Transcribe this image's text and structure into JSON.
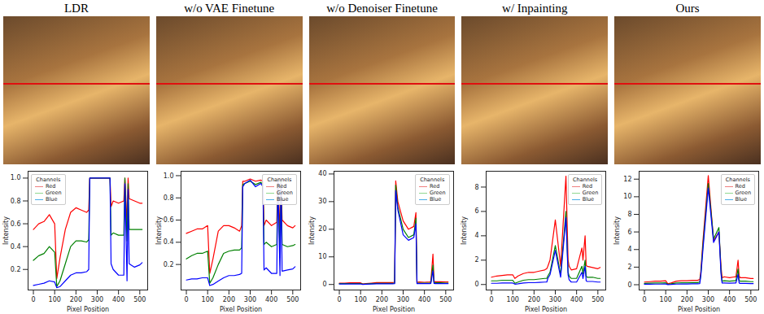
{
  "chart_data": [
    {
      "type": "line",
      "title": "LDR",
      "x_label": "Pixel Position",
      "y_label": "Intensity",
      "legend": "top left",
      "legend_title": "Channels",
      "xlim": [
        -25,
        537
      ],
      "xticks": [
        0,
        100,
        200,
        300,
        400,
        500
      ],
      "ylim": [
        0.02,
        1.06
      ],
      "yticks": [
        {
          "value": 0.2,
          "label": "0.2"
        },
        {
          "value": 0.4,
          "label": "0.4"
        },
        {
          "value": 0.6,
          "label": "0.6"
        },
        {
          "value": 0.8,
          "label": "0.8"
        },
        {
          "value": 1,
          "label": "1.0"
        }
      ],
      "x": [
        0,
        25,
        50,
        75,
        100,
        110,
        125,
        150,
        175,
        200,
        225,
        250,
        260,
        265,
        275,
        300,
        325,
        350,
        360,
        365,
        375,
        400,
        425,
        430,
        440,
        445,
        450,
        475,
        500,
        511
      ],
      "series": [
        {
          "name": "Red",
          "color": "#f08080",
          "values": [
            0.55,
            0.6,
            0.62,
            0.68,
            0.6,
            0.12,
            0.3,
            0.55,
            0.7,
            0.74,
            0.72,
            0.7,
            0.72,
            1,
            1,
            1,
            1,
            1,
            1,
            0.75,
            0.8,
            0.78,
            0.8,
            1,
            0.6,
            1,
            0.82,
            0.8,
            0.78,
            0.78
          ]
        },
        {
          "name": "Green",
          "color": "#90d890",
          "values": [
            0.28,
            0.32,
            0.34,
            0.4,
            0.35,
            0.05,
            0.1,
            0.25,
            0.4,
            0.45,
            0.45,
            0.44,
            0.46,
            1,
            1,
            1,
            1,
            1,
            1,
            0.5,
            0.52,
            0.5,
            0.5,
            1,
            0.45,
            0.95,
            0.55,
            0.55,
            0.55,
            0.55
          ]
        },
        {
          "name": "Blue",
          "color": "#4aaee8",
          "values": [
            0.06,
            0.07,
            0.08,
            0.1,
            0.09,
            0.04,
            0.05,
            0.1,
            0.15,
            0.17,
            0.17,
            0.18,
            0.2,
            1,
            1,
            1,
            1,
            1,
            1,
            0.25,
            0.2,
            0.15,
            0.15,
            0.95,
            0.1,
            0.9,
            0.25,
            0.22,
            0.24,
            0.26
          ]
        }
      ]
    },
    {
      "type": "line",
      "title": "w/o VAE Finetune",
      "x_label": "Pixel Position",
      "y_label": "Intensity",
      "legend": "top right",
      "legend_title": "Channels",
      "xlim": [
        -25,
        537
      ],
      "xticks": [
        0,
        100,
        200,
        300,
        400,
        500
      ],
      "ylim": [
        -0.03,
        1.04
      ],
      "yticks": [
        {
          "value": 0.2,
          "label": "0.2"
        },
        {
          "value": 0.4,
          "label": "0.4"
        },
        {
          "value": 0.6,
          "label": "0.6"
        },
        {
          "value": 0.8,
          "label": "0.8"
        },
        {
          "value": 1,
          "label": "1.0"
        }
      ],
      "x": [
        0,
        25,
        50,
        75,
        100,
        110,
        125,
        150,
        175,
        200,
        225,
        250,
        260,
        265,
        275,
        300,
        325,
        350,
        360,
        365,
        375,
        400,
        425,
        430,
        440,
        445,
        450,
        475,
        500,
        511
      ],
      "series": [
        {
          "name": "Red",
          "color": "#f08080",
          "values": [
            0.48,
            0.5,
            0.52,
            0.52,
            0.55,
            0.12,
            0.25,
            0.5,
            0.55,
            0.55,
            0.53,
            0.5,
            0.55,
            0.95,
            0.95,
            0.97,
            0.95,
            0.96,
            0.95,
            0.55,
            0.6,
            0.55,
            0.58,
            0.98,
            0.5,
            0.98,
            0.6,
            0.55,
            0.53,
            0.55
          ]
        },
        {
          "name": "Green",
          "color": "#90d890",
          "values": [
            0.25,
            0.28,
            0.3,
            0.3,
            0.32,
            0.03,
            0.08,
            0.2,
            0.3,
            0.32,
            0.33,
            0.33,
            0.35,
            0.92,
            0.93,
            0.95,
            0.92,
            0.94,
            0.92,
            0.38,
            0.4,
            0.36,
            0.38,
            0.95,
            0.3,
            0.95,
            0.38,
            0.36,
            0.37,
            0.38
          ]
        },
        {
          "name": "Blue",
          "color": "#4aaee8",
          "values": [
            0.06,
            0.07,
            0.07,
            0.08,
            0.08,
            0.01,
            0.02,
            0.05,
            0.08,
            0.1,
            0.1,
            0.11,
            0.12,
            0.9,
            0.93,
            0.96,
            0.9,
            0.93,
            0.9,
            0.15,
            0.17,
            0.12,
            0.12,
            0.95,
            0.1,
            0.93,
            0.14,
            0.15,
            0.16,
            0.18
          ]
        }
      ]
    },
    {
      "type": "line",
      "title": "w/o Denoiser Finetune",
      "x_label": "Pixel Position",
      "y_label": "Intensity",
      "legend": "top right",
      "legend_title": "Channels",
      "xlim": [
        -25,
        537
      ],
      "xticks": [
        0,
        100,
        200,
        300,
        400,
        500
      ],
      "ylim": [
        -2,
        41
      ],
      "yticks": [
        0,
        10,
        20,
        30,
        40
      ],
      "x": [
        0,
        25,
        50,
        75,
        100,
        110,
        125,
        150,
        175,
        200,
        225,
        250,
        260,
        265,
        275,
        300,
        325,
        350,
        360,
        365,
        375,
        400,
        425,
        430,
        440,
        445,
        450,
        475,
        500,
        511
      ],
      "series": [
        {
          "name": "Red",
          "color": "#f08080",
          "values": [
            0.5,
            0.5,
            0.6,
            0.6,
            0.6,
            0.2,
            0.3,
            0.5,
            0.7,
            0.7,
            0.7,
            0.7,
            0.8,
            37.5,
            30,
            23,
            20,
            21,
            26,
            0.8,
            0.9,
            0.8,
            0.9,
            1,
            11,
            1.2,
            1,
            1,
            0.9,
            0.9
          ]
        },
        {
          "name": "Green",
          "color": "#90d890",
          "values": [
            0.3,
            0.3,
            0.35,
            0.35,
            0.35,
            0.1,
            0.2,
            0.3,
            0.4,
            0.4,
            0.4,
            0.4,
            0.5,
            36,
            28,
            20,
            17,
            18,
            24,
            0.5,
            0.5,
            0.5,
            0.5,
            0.6,
            7,
            0.7,
            0.6,
            0.6,
            0.5,
            0.5
          ]
        },
        {
          "name": "Blue",
          "color": "#4aaee8",
          "values": [
            0.2,
            0.2,
            0.2,
            0.2,
            0.2,
            0.05,
            0.1,
            0.2,
            0.25,
            0.25,
            0.25,
            0.25,
            0.3,
            34,
            27,
            18,
            16,
            17,
            22,
            0.3,
            0.3,
            0.3,
            0.3,
            0.4,
            5,
            0.4,
            0.3,
            0.3,
            0.3,
            0.3
          ]
        }
      ]
    },
    {
      "type": "line",
      "title": "w/ Inpainting",
      "x_label": "Pixel Position",
      "y_label": "Intensity",
      "legend": "top right",
      "legend_title": "Channels",
      "xlim": [
        -25,
        537
      ],
      "xticks": [
        0,
        100,
        200,
        300,
        400,
        500
      ],
      "ylim": [
        -0.45,
        9.3
      ],
      "yticks": [
        0,
        2,
        4,
        6,
        8
      ],
      "x": [
        0,
        25,
        50,
        75,
        100,
        110,
        125,
        150,
        175,
        200,
        225,
        250,
        260,
        265,
        275,
        300,
        325,
        350,
        360,
        365,
        375,
        400,
        425,
        430,
        440,
        445,
        450,
        475,
        500,
        511
      ],
      "series": [
        {
          "name": "Red",
          "color": "#f08080",
          "values": [
            0.6,
            0.7,
            0.75,
            0.8,
            0.8,
            0.5,
            0.7,
            0.9,
            1.0,
            1.0,
            1.1,
            1.2,
            1.3,
            1.5,
            2.0,
            5.3,
            1.5,
            8.9,
            2.0,
            1.5,
            1.2,
            1.3,
            3.0,
            2.0,
            4.0,
            1.6,
            1.5,
            1.4,
            1.3,
            1.4
          ]
        },
        {
          "name": "Green",
          "color": "#90d890",
          "values": [
            0.3,
            0.3,
            0.35,
            0.35,
            0.35,
            0.1,
            0.2,
            0.35,
            0.4,
            0.4,
            0.45,
            0.5,
            0.5,
            0.7,
            1.0,
            3.2,
            0.8,
            6.0,
            1.0,
            0.7,
            0.5,
            0.5,
            1.5,
            0.9,
            2.0,
            0.7,
            0.6,
            0.6,
            0.5,
            0.5
          ]
        },
        {
          "name": "Blue",
          "color": "#4aaee8",
          "values": [
            0.1,
            0.1,
            0.12,
            0.12,
            0.12,
            0.03,
            0.06,
            0.12,
            0.15,
            0.15,
            0.18,
            0.2,
            0.2,
            0.5,
            0.8,
            2.8,
            0.6,
            5.5,
            0.8,
            0.4,
            0.2,
            0.2,
            1.0,
            0.5,
            1.5,
            0.3,
            0.25,
            0.25,
            0.2,
            0.2
          ]
        }
      ]
    },
    {
      "type": "line",
      "title": "Ours",
      "x_label": "Pixel Position",
      "y_label": "Intensity",
      "legend": "top right",
      "legend_title": "Channels",
      "xlim": [
        -25,
        537
      ],
      "xticks": [
        0,
        100,
        200,
        300,
        400,
        500
      ],
      "ylim": [
        -0.6,
        12.9
      ],
      "yticks": [
        0,
        2,
        4,
        6,
        8,
        10,
        12
      ],
      "x": [
        0,
        25,
        50,
        75,
        100,
        110,
        125,
        150,
        175,
        200,
        225,
        250,
        260,
        265,
        275,
        300,
        325,
        350,
        360,
        365,
        375,
        400,
        425,
        430,
        440,
        445,
        450,
        475,
        500,
        511
      ],
      "series": [
        {
          "name": "Red",
          "color": "#f08080",
          "values": [
            0.3,
            0.35,
            0.4,
            0.4,
            0.45,
            0.1,
            0.2,
            0.4,
            0.45,
            0.45,
            0.5,
            0.5,
            0.6,
            1.5,
            5,
            12.4,
            5,
            6,
            2,
            0.8,
            0.9,
            0.8,
            0.9,
            0.9,
            2.8,
            1,
            0.8,
            0.8,
            0.7,
            0.7
          ]
        },
        {
          "name": "Green",
          "color": "#90d890",
          "values": [
            0.15,
            0.18,
            0.2,
            0.2,
            0.22,
            0.05,
            0.1,
            0.2,
            0.22,
            0.22,
            0.25,
            0.25,
            0.3,
            1.2,
            4.5,
            11.5,
            5.2,
            6.5,
            1.5,
            0.4,
            0.45,
            0.4,
            0.45,
            0.45,
            1.8,
            0.5,
            0.4,
            0.4,
            0.35,
            0.35
          ]
        },
        {
          "name": "Blue",
          "color": "#4aaee8",
          "values": [
            0.05,
            0.06,
            0.07,
            0.07,
            0.08,
            0.02,
            0.03,
            0.07,
            0.08,
            0.08,
            0.1,
            0.1,
            0.12,
            1.0,
            4.0,
            11.0,
            4.8,
            6.0,
            1.2,
            0.2,
            0.2,
            0.18,
            0.2,
            0.2,
            1.2,
            0.2,
            0.15,
            0.15,
            0.12,
            0.12
          ]
        }
      ]
    }
  ]
}
